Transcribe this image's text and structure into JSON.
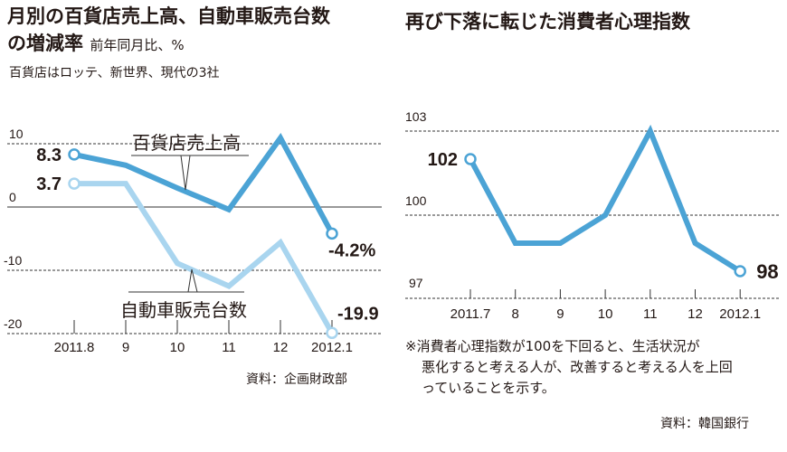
{
  "left": {
    "title_line1": "月別の百貨店売上高、自動車販売台数",
    "title_line2": "の増減率",
    "unit_note": "前年同月比、%",
    "note": "百貨店はロッテ、新世界、現代の3社",
    "source": "資料：企画財政部"
  },
  "right": {
    "title": "再び下落に転じた消費者心理指数",
    "footnote_line1": "※消費者心理指数が100を下回ると、生活状況が",
    "footnote_line2": "悪化すると考える人が、改善すると考える人を上回",
    "footnote_line3": "っていることを示す。",
    "source": "資料：韓国銀行"
  },
  "chart_data": [
    {
      "type": "line",
      "categories": [
        "2011.8",
        "9",
        "10",
        "11",
        "12",
        "2012.1"
      ],
      "ylim": [
        -20,
        10
      ],
      "yticks": [
        "10",
        "0",
        "-10",
        "-20"
      ],
      "grid": true,
      "series": [
        {
          "name": "百貨店売上高",
          "values": [
            8.3,
            6.6,
            3.0,
            -0.4,
            10.9,
            -4.2
          ],
          "color": "#4ba3d5",
          "labels": {
            "first": "8.3",
            "last": "-4.2%"
          }
        },
        {
          "name": "自動車販売台数",
          "values": [
            3.7,
            3.7,
            -8.9,
            -12.5,
            -5.6,
            -19.9
          ],
          "color": "#a9d5ef",
          "labels": {
            "first": "3.7",
            "last": "-19.9"
          }
        }
      ]
    },
    {
      "type": "line",
      "categories": [
        "2011.7",
        "8",
        "9",
        "10",
        "11",
        "12",
        "2012.1"
      ],
      "ylim": [
        97,
        103
      ],
      "yticks": [
        "103",
        "100",
        "97"
      ],
      "grid": true,
      "series": [
        {
          "values": [
            102,
            99,
            99,
            100,
            103,
            99,
            98
          ],
          "color": "#4ba3d5",
          "labels": {
            "first": "102",
            "last": "98"
          }
        }
      ]
    }
  ]
}
